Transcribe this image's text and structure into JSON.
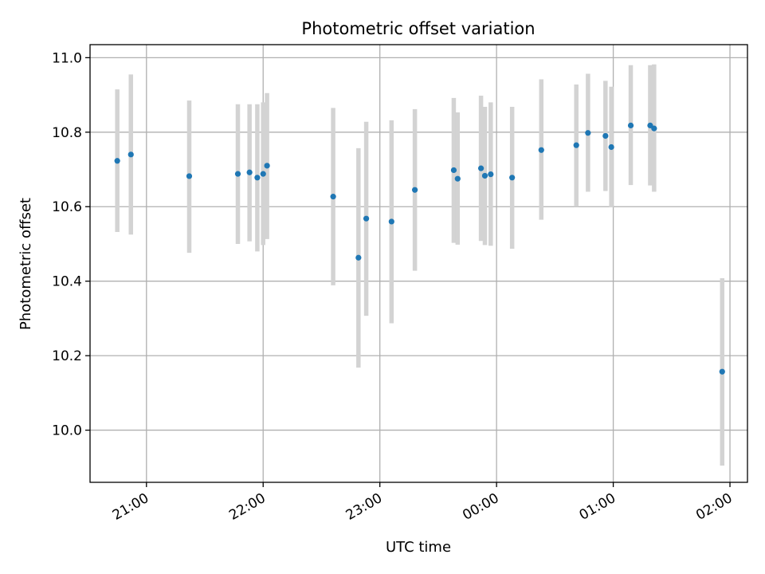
{
  "chart_data": {
    "type": "scatter",
    "title": "Photometric offset variation",
    "xlabel": "UTC time",
    "ylabel": "Photometric offset",
    "x_axis": {
      "type": "time",
      "start": "20:31",
      "end": "02:09",
      "ticks": [
        "21:00",
        "22:00",
        "23:00",
        "00:00",
        "01:00",
        "02:00"
      ],
      "tick_label_rotation_deg": 30
    },
    "y_axis": {
      "range": [
        9.86,
        11.035
      ],
      "ticks": [
        "10.0",
        "10.2",
        "10.4",
        "10.6",
        "10.8",
        "11.0"
      ]
    },
    "grid": true,
    "colors": {
      "point": "#1f77b4",
      "errorbar": "#d3d3d3"
    },
    "points": [
      {
        "time": "20:45",
        "y": 10.723,
        "lo": 10.532,
        "hi": 10.915
      },
      {
        "time": "20:52",
        "y": 10.74,
        "lo": 10.525,
        "hi": 10.955
      },
      {
        "time": "21:22",
        "y": 10.682,
        "lo": 10.476,
        "hi": 10.885
      },
      {
        "time": "21:47",
        "y": 10.688,
        "lo": 10.5,
        "hi": 10.875
      },
      {
        "time": "21:53",
        "y": 10.692,
        "lo": 10.507,
        "hi": 10.875
      },
      {
        "time": "21:57",
        "y": 10.678,
        "lo": 10.48,
        "hi": 10.875
      },
      {
        "time": "22:00",
        "y": 10.688,
        "lo": 10.497,
        "hi": 10.88
      },
      {
        "time": "22:02",
        "y": 10.71,
        "lo": 10.513,
        "hi": 10.905
      },
      {
        "time": "22:36",
        "y": 10.627,
        "lo": 10.389,
        "hi": 10.865
      },
      {
        "time": "22:49",
        "y": 10.463,
        "lo": 10.168,
        "hi": 10.757
      },
      {
        "time": "22:53",
        "y": 10.568,
        "lo": 10.307,
        "hi": 10.828
      },
      {
        "time": "23:06",
        "y": 10.56,
        "lo": 10.287,
        "hi": 10.832
      },
      {
        "time": "23:18",
        "y": 10.645,
        "lo": 10.428,
        "hi": 10.862
      },
      {
        "time": "23:38",
        "y": 10.698,
        "lo": 10.503,
        "hi": 10.892
      },
      {
        "time": "23:40",
        "y": 10.675,
        "lo": 10.498,
        "hi": 10.853
      },
      {
        "time": "23:52",
        "y": 10.703,
        "lo": 10.508,
        "hi": 10.898
      },
      {
        "time": "23:54",
        "y": 10.683,
        "lo": 10.497,
        "hi": 10.868
      },
      {
        "time": "23:57",
        "y": 10.687,
        "lo": 10.495,
        "hi": 10.88
      },
      {
        "time": "00:08",
        "y": 10.678,
        "lo": 10.487,
        "hi": 10.868
      },
      {
        "time": "00:23",
        "y": 10.752,
        "lo": 10.565,
        "hi": 10.942
      },
      {
        "time": "00:41",
        "y": 10.765,
        "lo": 10.6,
        "hi": 10.928
      },
      {
        "time": "00:47",
        "y": 10.798,
        "lo": 10.64,
        "hi": 10.957
      },
      {
        "time": "00:56",
        "y": 10.79,
        "lo": 10.642,
        "hi": 10.938
      },
      {
        "time": "00:59",
        "y": 10.76,
        "lo": 10.598,
        "hi": 10.922
      },
      {
        "time": "01:09",
        "y": 10.818,
        "lo": 10.658,
        "hi": 10.98
      },
      {
        "time": "01:19",
        "y": 10.818,
        "lo": 10.657,
        "hi": 10.98
      },
      {
        "time": "01:21",
        "y": 10.81,
        "lo": 10.64,
        "hi": 10.982
      },
      {
        "time": "01:56",
        "y": 10.157,
        "lo": 9.905,
        "hi": 10.408
      }
    ]
  }
}
